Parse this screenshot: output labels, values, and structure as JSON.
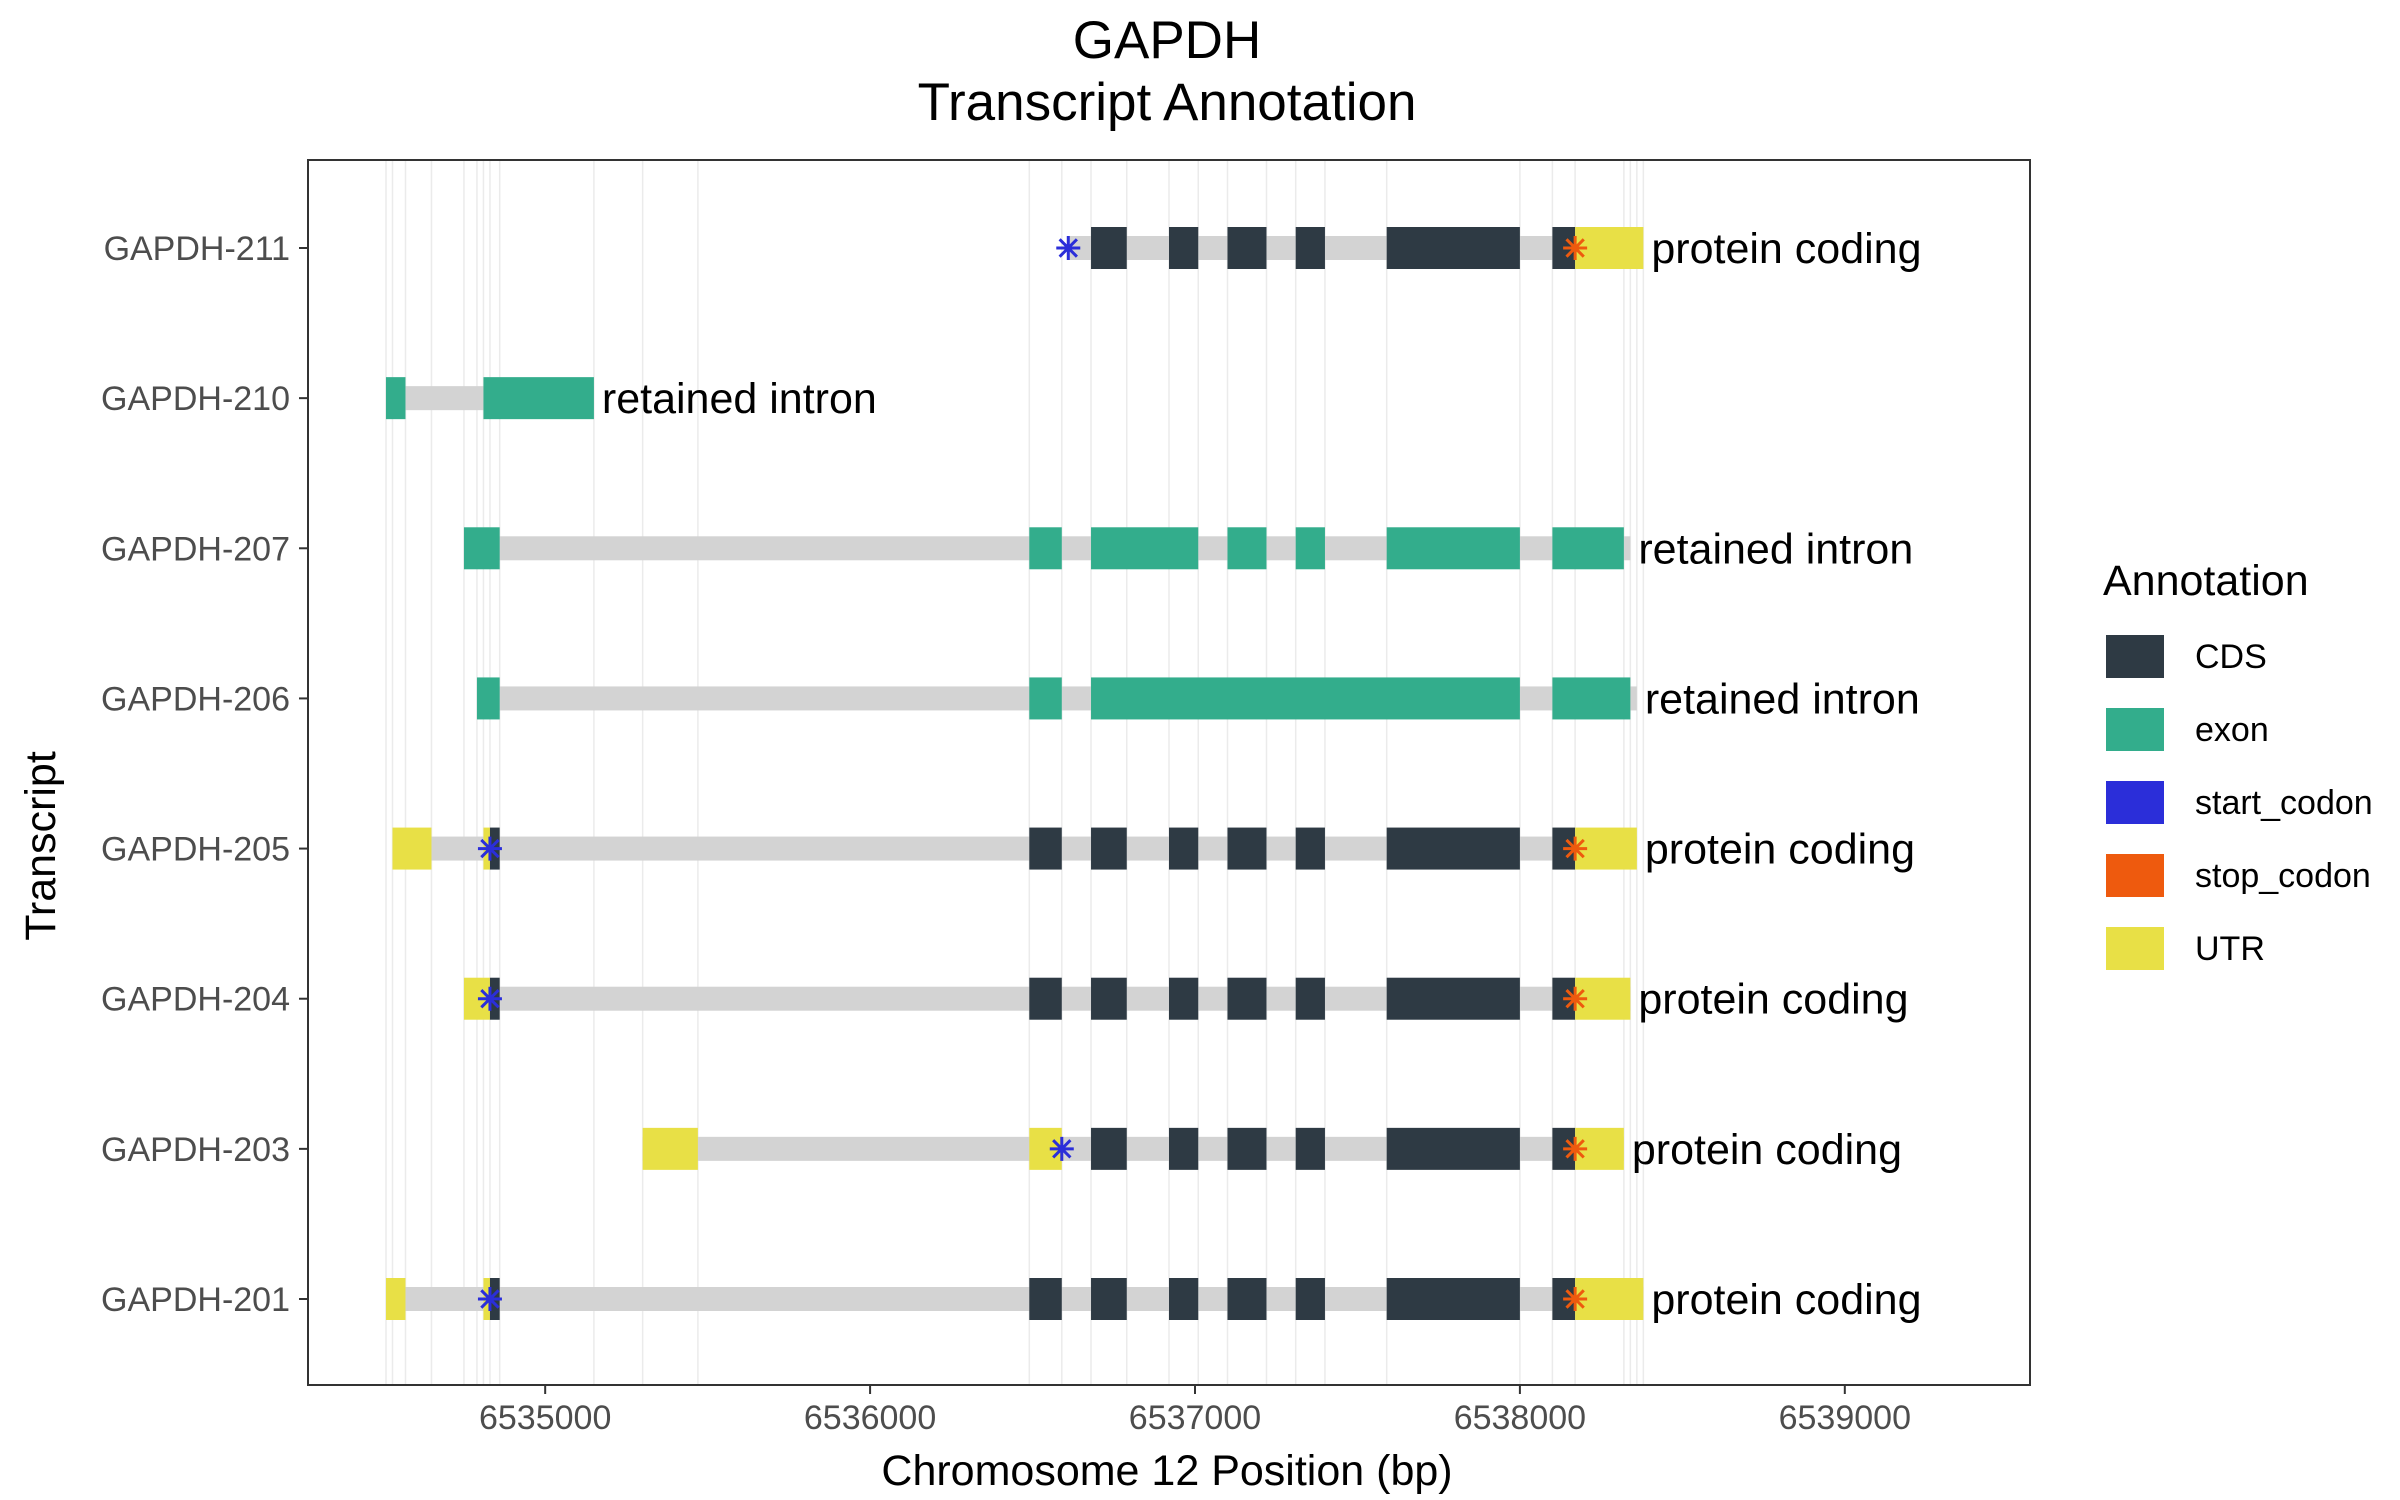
{
  "chart_data": {
    "type": "gene-structure",
    "title_line1": "GAPDH",
    "title_line2": "Transcript Annotation",
    "xlabel": "Chromosome 12 Position (bp)",
    "ylabel": "Transcript",
    "xlim": [
      6534270,
      6539570
    ],
    "xticks": [
      6535000,
      6536000,
      6537000,
      6538000,
      6539000
    ],
    "xtick_labels": [
      "6535000",
      "6536000",
      "6537000",
      "6538000",
      "6539000"
    ],
    "grid": true,
    "legend_position": "right",
    "legend_title": "Annotation",
    "legend": [
      {
        "key": "CDS",
        "label": "CDS",
        "color": "#2E3A44"
      },
      {
        "key": "exon",
        "label": "exon",
        "color": "#33AD8C"
      },
      {
        "key": "start_codon",
        "label": "start_codon",
        "color": "#2B2ED9"
      },
      {
        "key": "stop_codon",
        "label": "stop_codon",
        "color": "#EE5A0E"
      },
      {
        "key": "UTR",
        "label": "UTR",
        "color": "#E8E046"
      }
    ],
    "intron_color": "#D3D3D3",
    "transcripts": [
      {
        "name": "GAPDH-211",
        "biotype": "protein coding",
        "intron": [
          6536610,
          6538350
        ],
        "features": [
          {
            "type": "CDS",
            "start": 6536680,
            "end": 6536790
          },
          {
            "type": "CDS",
            "start": 6536920,
            "end": 6537010
          },
          {
            "type": "CDS",
            "start": 6537100,
            "end": 6537220
          },
          {
            "type": "CDS",
            "start": 6537310,
            "end": 6537400
          },
          {
            "type": "CDS",
            "start": 6537590,
            "end": 6538000
          },
          {
            "type": "CDS",
            "start": 6538100,
            "end": 6538170
          },
          {
            "type": "UTR",
            "start": 6538170,
            "end": 6538380
          }
        ],
        "start_codon": 6536610,
        "stop_codon": 6538170
      },
      {
        "name": "GAPDH-210",
        "biotype": "retained intron",
        "intron": [
          6534510,
          6535150
        ],
        "features": [
          {
            "type": "exon",
            "start": 6534510,
            "end": 6534570
          },
          {
            "type": "exon",
            "start": 6534810,
            "end": 6535150
          }
        ]
      },
      {
        "name": "GAPDH-207",
        "biotype": "retained intron",
        "intron": [
          6534750,
          6538340
        ],
        "features": [
          {
            "type": "exon",
            "start": 6534750,
            "end": 6534860
          },
          {
            "type": "exon",
            "start": 6536490,
            "end": 6536590
          },
          {
            "type": "exon",
            "start": 6536680,
            "end": 6537010
          },
          {
            "type": "exon",
            "start": 6537100,
            "end": 6537220
          },
          {
            "type": "exon",
            "start": 6537310,
            "end": 6537400
          },
          {
            "type": "exon",
            "start": 6537590,
            "end": 6538000
          },
          {
            "type": "exon",
            "start": 6538100,
            "end": 6538320
          }
        ]
      },
      {
        "name": "GAPDH-206",
        "biotype": "retained intron",
        "intron": [
          6534790,
          6538360
        ],
        "features": [
          {
            "type": "exon",
            "start": 6534790,
            "end": 6534860
          },
          {
            "type": "exon",
            "start": 6536490,
            "end": 6536590
          },
          {
            "type": "exon",
            "start": 6536680,
            "end": 6538000
          },
          {
            "type": "exon",
            "start": 6538100,
            "end": 6538340
          }
        ]
      },
      {
        "name": "GAPDH-205",
        "biotype": "protein coding",
        "intron": [
          6534530,
          6538360
        ],
        "features": [
          {
            "type": "UTR",
            "start": 6534530,
            "end": 6534650
          },
          {
            "type": "UTR",
            "start": 6534810,
            "end": 6534830
          },
          {
            "type": "CDS",
            "start": 6534830,
            "end": 6534860
          },
          {
            "type": "CDS",
            "start": 6536490,
            "end": 6536590
          },
          {
            "type": "CDS",
            "start": 6536680,
            "end": 6536790
          },
          {
            "type": "CDS",
            "start": 6536920,
            "end": 6537010
          },
          {
            "type": "CDS",
            "start": 6537100,
            "end": 6537220
          },
          {
            "type": "CDS",
            "start": 6537310,
            "end": 6537400
          },
          {
            "type": "CDS",
            "start": 6537590,
            "end": 6538000
          },
          {
            "type": "CDS",
            "start": 6538100,
            "end": 6538170
          },
          {
            "type": "UTR",
            "start": 6538170,
            "end": 6538360
          }
        ],
        "start_codon": 6534830,
        "stop_codon": 6538170
      },
      {
        "name": "GAPDH-204",
        "biotype": "protein coding",
        "intron": [
          6534750,
          6538340
        ],
        "features": [
          {
            "type": "UTR",
            "start": 6534750,
            "end": 6534830
          },
          {
            "type": "CDS",
            "start": 6534830,
            "end": 6534860
          },
          {
            "type": "CDS",
            "start": 6536490,
            "end": 6536590
          },
          {
            "type": "CDS",
            "start": 6536680,
            "end": 6536790
          },
          {
            "type": "CDS",
            "start": 6536920,
            "end": 6537010
          },
          {
            "type": "CDS",
            "start": 6537100,
            "end": 6537220
          },
          {
            "type": "CDS",
            "start": 6537310,
            "end": 6537400
          },
          {
            "type": "CDS",
            "start": 6537590,
            "end": 6538000
          },
          {
            "type": "CDS",
            "start": 6538100,
            "end": 6538170
          },
          {
            "type": "UTR",
            "start": 6538170,
            "end": 6538340
          }
        ],
        "start_codon": 6534830,
        "stop_codon": 6538170
      },
      {
        "name": "GAPDH-203",
        "biotype": "protein coding",
        "intron": [
          6535300,
          6538320
        ],
        "features": [
          {
            "type": "UTR",
            "start": 6535300,
            "end": 6535470
          },
          {
            "type": "UTR",
            "start": 6536490,
            "end": 6536590
          },
          {
            "type": "CDS",
            "start": 6536680,
            "end": 6536790
          },
          {
            "type": "CDS",
            "start": 6536920,
            "end": 6537010
          },
          {
            "type": "CDS",
            "start": 6537100,
            "end": 6537220
          },
          {
            "type": "CDS",
            "start": 6537310,
            "end": 6537400
          },
          {
            "type": "CDS",
            "start": 6537590,
            "end": 6538000
          },
          {
            "type": "CDS",
            "start": 6538100,
            "end": 6538170
          },
          {
            "type": "UTR",
            "start": 6538170,
            "end": 6538320
          }
        ],
        "start_codon": 6536590,
        "stop_codon": 6538170
      },
      {
        "name": "GAPDH-201",
        "biotype": "protein coding",
        "intron": [
          6534510,
          6538380
        ],
        "features": [
          {
            "type": "UTR",
            "start": 6534510,
            "end": 6534570
          },
          {
            "type": "UTR",
            "start": 6534810,
            "end": 6534830
          },
          {
            "type": "CDS",
            "start": 6534830,
            "end": 6534860
          },
          {
            "type": "CDS",
            "start": 6536490,
            "end": 6536590
          },
          {
            "type": "CDS",
            "start": 6536680,
            "end": 6536790
          },
          {
            "type": "CDS",
            "start": 6536920,
            "end": 6537010
          },
          {
            "type": "CDS",
            "start": 6537100,
            "end": 6537220
          },
          {
            "type": "CDS",
            "start": 6537310,
            "end": 6537400
          },
          {
            "type": "CDS",
            "start": 6537590,
            "end": 6538000
          },
          {
            "type": "CDS",
            "start": 6538100,
            "end": 6538170
          },
          {
            "type": "UTR",
            "start": 6538170,
            "end": 6538380
          }
        ],
        "start_codon": 6534830,
        "stop_codon": 6538170
      }
    ]
  }
}
